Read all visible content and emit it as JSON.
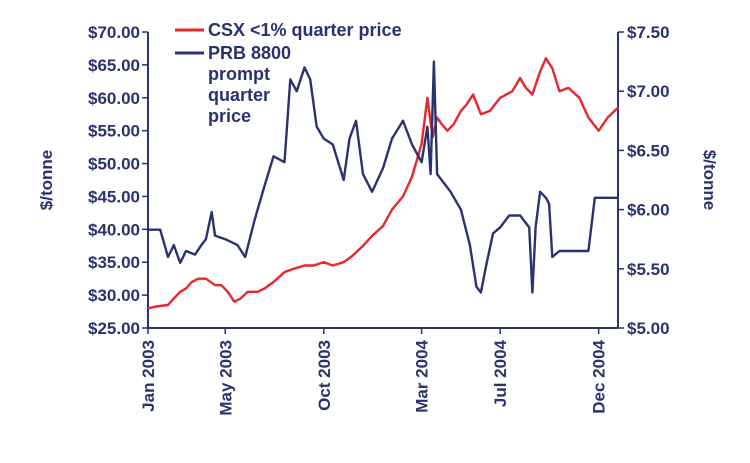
{
  "chart_data": {
    "type": "line",
    "title": "",
    "xlabel": "",
    "ylabel_left": "$/tonne",
    "ylabel_right": "$/tonne",
    "x_tick_labels": [
      "Jan 2003",
      "May 2003",
      "Oct 2003",
      "Mar 2004",
      "Jul 2004",
      "Dec 2004"
    ],
    "x_tick_dates": [
      "2003-01-01",
      "2003-05-01",
      "2003-10-01",
      "2004-03-01",
      "2004-07-01",
      "2004-12-01"
    ],
    "x_range": [
      "2003-01-01",
      "2004-12-31"
    ],
    "y_left_ticks": [
      "$70.00",
      "$65.00",
      "$60.00",
      "$55.00",
      "$50.00",
      "$45.00",
      "$40.00",
      "$35.00",
      "$30.00",
      "$25.00"
    ],
    "y_left_range": [
      25,
      70
    ],
    "y_right_ticks": [
      "$7.50",
      "$7.00",
      "$6.50",
      "$6.00",
      "$5.50",
      "$5.00"
    ],
    "y_right_range": [
      5.0,
      7.5
    ],
    "grid": false,
    "legend_position": "top-center",
    "series": [
      {
        "name": "CSX <1% quarter price",
        "axis": "left",
        "color": "#e8262d",
        "points": [
          [
            "2003-01-01",
            28.0
          ],
          [
            "2003-01-15",
            28.3
          ],
          [
            "2003-02-01",
            28.5
          ],
          [
            "2003-02-10",
            29.5
          ],
          [
            "2003-02-20",
            30.5
          ],
          [
            "2003-03-01",
            31.0
          ],
          [
            "2003-03-10",
            32.0
          ],
          [
            "2003-03-20",
            32.5
          ],
          [
            "2003-04-01",
            32.5
          ],
          [
            "2003-04-15",
            31.5
          ],
          [
            "2003-04-25",
            31.5
          ],
          [
            "2003-05-05",
            30.5
          ],
          [
            "2003-05-15",
            29.0
          ],
          [
            "2003-05-25",
            29.5
          ],
          [
            "2003-06-05",
            30.5
          ],
          [
            "2003-06-20",
            30.5
          ],
          [
            "2003-07-01",
            31.0
          ],
          [
            "2003-07-15",
            32.0
          ],
          [
            "2003-08-01",
            33.5
          ],
          [
            "2003-08-15",
            34.0
          ],
          [
            "2003-09-01",
            34.5
          ],
          [
            "2003-09-15",
            34.5
          ],
          [
            "2003-10-01",
            35.0
          ],
          [
            "2003-10-15",
            34.5
          ],
          [
            "2003-11-01",
            35.0
          ],
          [
            "2003-11-15",
            36.0
          ],
          [
            "2003-12-01",
            37.5
          ],
          [
            "2003-12-15",
            39.0
          ],
          [
            "2004-01-01",
            40.5
          ],
          [
            "2004-01-15",
            43.0
          ],
          [
            "2004-02-01",
            45.0
          ],
          [
            "2004-02-15",
            48.0
          ],
          [
            "2004-03-01",
            53.0
          ],
          [
            "2004-03-10",
            60.0
          ],
          [
            "2004-03-18",
            54.0
          ],
          [
            "2004-03-25",
            57.0
          ],
          [
            "2004-04-01",
            56.0
          ],
          [
            "2004-04-10",
            55.0
          ],
          [
            "2004-04-20",
            56.0
          ],
          [
            "2004-05-01",
            58.0
          ],
          [
            "2004-05-10",
            59.0
          ],
          [
            "2004-05-20",
            60.5
          ],
          [
            "2004-06-01",
            57.5
          ],
          [
            "2004-06-15",
            58.0
          ],
          [
            "2004-07-01",
            60.0
          ],
          [
            "2004-07-20",
            61.0
          ],
          [
            "2004-08-01",
            63.0
          ],
          [
            "2004-08-10",
            61.5
          ],
          [
            "2004-08-20",
            60.5
          ],
          [
            "2004-09-01",
            64.0
          ],
          [
            "2004-09-10",
            66.0
          ],
          [
            "2004-09-20",
            64.5
          ],
          [
            "2004-10-01",
            61.0
          ],
          [
            "2004-10-15",
            61.5
          ],
          [
            "2004-11-01",
            60.0
          ],
          [
            "2004-11-15",
            57.0
          ],
          [
            "2004-12-01",
            55.0
          ],
          [
            "2004-12-15",
            57.0
          ],
          [
            "2004-12-31",
            58.5
          ]
        ]
      },
      {
        "name": "PRB 8800 prompt quarter price",
        "axis": "right",
        "color": "#2b3270",
        "points": [
          [
            "2003-01-01",
            5.83
          ],
          [
            "2003-01-20",
            5.83
          ],
          [
            "2003-02-01",
            5.6
          ],
          [
            "2003-02-10",
            5.7
          ],
          [
            "2003-02-20",
            5.55
          ],
          [
            "2003-03-01",
            5.65
          ],
          [
            "2003-03-15",
            5.62
          ],
          [
            "2003-03-25",
            5.7
          ],
          [
            "2003-04-01",
            5.75
          ],
          [
            "2003-04-10",
            5.98
          ],
          [
            "2003-04-15",
            5.78
          ],
          [
            "2003-05-01",
            5.75
          ],
          [
            "2003-05-20",
            5.7
          ],
          [
            "2003-06-01",
            5.6
          ],
          [
            "2003-06-15",
            5.9
          ],
          [
            "2003-07-01",
            6.2
          ],
          [
            "2003-07-15",
            6.45
          ],
          [
            "2003-08-01",
            6.4
          ],
          [
            "2003-08-10",
            7.1
          ],
          [
            "2003-08-20",
            7.0
          ],
          [
            "2003-09-01",
            7.2
          ],
          [
            "2003-09-10",
            7.1
          ],
          [
            "2003-09-20",
            6.7
          ],
          [
            "2003-10-01",
            6.6
          ],
          [
            "2003-10-15",
            6.55
          ],
          [
            "2003-11-01",
            6.25
          ],
          [
            "2003-11-10",
            6.6
          ],
          [
            "2003-11-20",
            6.75
          ],
          [
            "2003-12-01",
            6.3
          ],
          [
            "2003-12-15",
            6.15
          ],
          [
            "2004-01-01",
            6.35
          ],
          [
            "2004-01-15",
            6.6
          ],
          [
            "2004-02-01",
            6.75
          ],
          [
            "2004-02-15",
            6.55
          ],
          [
            "2004-03-01",
            6.4
          ],
          [
            "2004-03-10",
            6.7
          ],
          [
            "2004-03-15",
            6.3
          ],
          [
            "2004-03-20",
            7.25
          ],
          [
            "2004-03-25",
            6.3
          ],
          [
            "2004-04-01",
            6.25
          ],
          [
            "2004-04-15",
            6.15
          ],
          [
            "2004-05-01",
            6.0
          ],
          [
            "2004-05-15",
            5.7
          ],
          [
            "2004-05-25",
            5.35
          ],
          [
            "2004-06-01",
            5.3
          ],
          [
            "2004-06-10",
            5.55
          ],
          [
            "2004-06-20",
            5.8
          ],
          [
            "2004-07-01",
            5.85
          ],
          [
            "2004-07-15",
            5.95
          ],
          [
            "2004-08-01",
            5.95
          ],
          [
            "2004-08-15",
            5.85
          ],
          [
            "2004-08-20",
            5.3
          ],
          [
            "2004-08-25",
            5.85
          ],
          [
            "2004-09-01",
            6.15
          ],
          [
            "2004-09-10",
            6.1
          ],
          [
            "2004-09-15",
            6.05
          ],
          [
            "2004-09-20",
            5.6
          ],
          [
            "2004-10-01",
            5.65
          ],
          [
            "2004-11-01",
            5.65
          ],
          [
            "2004-11-15",
            5.65
          ],
          [
            "2004-11-25",
            6.1
          ],
          [
            "2004-12-15",
            6.1
          ],
          [
            "2004-12-31",
            6.1
          ]
        ]
      }
    ]
  }
}
